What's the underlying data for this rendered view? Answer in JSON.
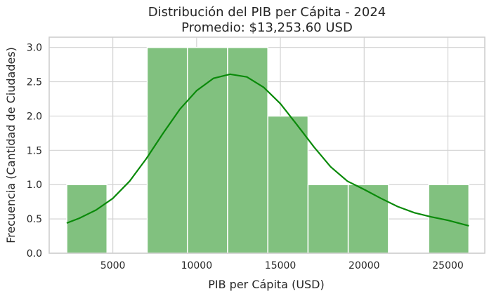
{
  "chart_data": {
    "type": "bar",
    "title": "Distribución del PIB per Cápita - 2024",
    "subtitle": "Promedio: $13,253.60 USD",
    "xlabel": "PIB per Cápita (USD)",
    "ylabel": "Frecuencia (Cantidad de Ciudades)",
    "xlim": [
      1200,
      27200
    ],
    "ylim": [
      0,
      3.15
    ],
    "xticks": [
      5000,
      10000,
      15000,
      20000,
      25000
    ],
    "yticks": [
      0.0,
      0.5,
      1.0,
      1.5,
      2.0,
      2.5,
      3.0
    ],
    "bins": [
      {
        "x0": 2250,
        "x1": 4650,
        "count": 1
      },
      {
        "x0": 4650,
        "x1": 7050,
        "count": 0
      },
      {
        "x0": 7050,
        "x1": 9450,
        "count": 3
      },
      {
        "x0": 9450,
        "x1": 11850,
        "count": 3
      },
      {
        "x0": 11850,
        "x1": 14250,
        "count": 3
      },
      {
        "x0": 14250,
        "x1": 16650,
        "count": 2
      },
      {
        "x0": 16650,
        "x1": 19050,
        "count": 1
      },
      {
        "x0": 19050,
        "x1": 21450,
        "count": 1
      },
      {
        "x0": 21450,
        "x1": 23850,
        "count": 0
      },
      {
        "x0": 23850,
        "x1": 26250,
        "count": 1
      }
    ],
    "kde": {
      "x": [
        2250,
        3000,
        4000,
        5000,
        6000,
        7000,
        8000,
        9000,
        10000,
        11000,
        12000,
        13000,
        14000,
        15000,
        16000,
        17000,
        18000,
        19000,
        20000,
        21000,
        22000,
        23000,
        24000,
        25000,
        26250
      ],
      "y": [
        0.44,
        0.51,
        0.63,
        0.8,
        1.05,
        1.38,
        1.75,
        2.1,
        2.37,
        2.55,
        2.61,
        2.57,
        2.42,
        2.18,
        1.87,
        1.55,
        1.26,
        1.05,
        0.93,
        0.8,
        0.68,
        0.59,
        0.53,
        0.48,
        0.4
      ]
    },
    "colors": {
      "bar": "#81c17f",
      "bar_edge": "#ffffff",
      "kde": "#0a8a0a",
      "grid": "#d3d3d3",
      "frame": "#cccccc"
    },
    "grid": true,
    "legend": "none"
  }
}
